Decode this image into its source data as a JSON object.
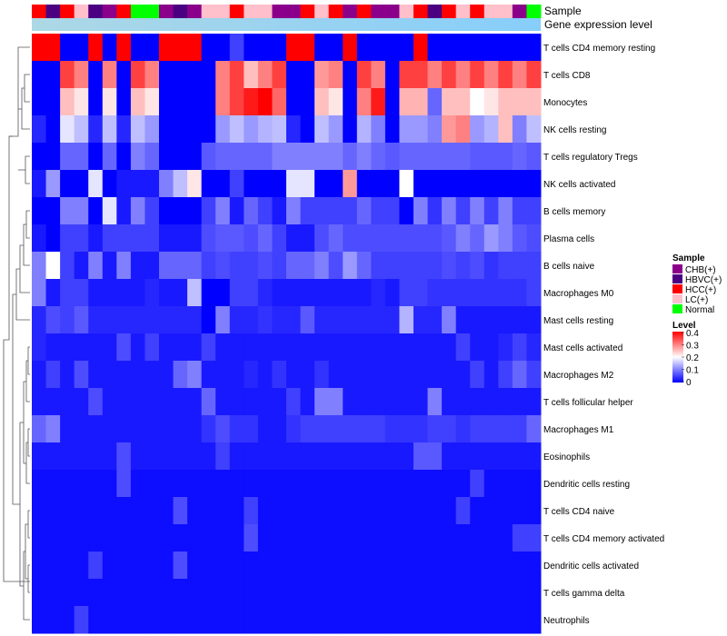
{
  "chart_data": {
    "type": "heatmap",
    "annotation_labels": [
      "Sample",
      "Gene expression level"
    ],
    "rows": [
      "T cells CD4 memory resting",
      "T cells CD8",
      "Monocytes",
      "NK cells resting",
      "T cells regulatory  Tregs",
      "NK cells activated",
      "B cells memory",
      "Plasma cells",
      "B cells naive",
      "Macrophages M0",
      "Mast cells resting",
      "Mast cells activated",
      "Macrophages M2",
      "T cells follicular helper",
      "Macrophages M1",
      "Eosinophils",
      "Dendritic cells resting",
      "T cells CD4 naive",
      "T cells CD4 memory activated",
      "Dendritic cells activated",
      "T cells gamma delta",
      "Neutrophils"
    ],
    "sample_groups": [
      "HCC(+)",
      "HBVC(+)",
      "HCC(+)",
      "LC(+)",
      "HBVC(+)",
      "CHB(+)",
      "HCC(+)",
      "Normal",
      "Normal",
      "CHB(+)",
      "HBVC(+)",
      "CHB(+)",
      "LC(+)",
      "LC(+)",
      "HCC(+)",
      "LC(+)",
      "LC(+)",
      "CHB(+)",
      "CHB(+)",
      "HCC(+)",
      "LC(+)",
      "HCC(+)",
      "CHB(+)",
      "HCC(+)",
      "CHB(+)",
      "CHB(+)",
      "LC(+)",
      "HCC(+)",
      "HBVC(+)",
      "HCC(+)",
      "LC(+)",
      "HCC(+)",
      "LC(+)",
      "LC(+)",
      "CHB(+)",
      "Normal"
    ],
    "values": [
      [
        0.4,
        0.4,
        0.0,
        0.0,
        0.4,
        0.0,
        0.4,
        0.0,
        0.0,
        0.4,
        0.4,
        0.4,
        0.0,
        0.0,
        0.05,
        0.0,
        0.0,
        0.0,
        0.4,
        0.4,
        0.0,
        0.0,
        0.4,
        0.0,
        0.0,
        0.0,
        0.0,
        0.4,
        0.0,
        0.0,
        0.0,
        0.0,
        0.0,
        0.0,
        0.0,
        0.0
      ],
      [
        0.0,
        0.0,
        0.35,
        0.3,
        0.0,
        0.3,
        0.0,
        0.35,
        0.3,
        0.0,
        0.0,
        0.0,
        0.0,
        0.3,
        0.35,
        0.25,
        0.3,
        0.35,
        0.0,
        0.0,
        0.28,
        0.3,
        0.0,
        0.35,
        0.3,
        0.0,
        0.35,
        0.35,
        0.3,
        0.35,
        0.3,
        0.35,
        0.3,
        0.35,
        0.3,
        0.35
      ],
      [
        0.0,
        0.0,
        0.25,
        0.22,
        0.0,
        0.22,
        0.0,
        0.25,
        0.22,
        0.0,
        0.0,
        0.0,
        0.0,
        0.3,
        0.35,
        0.38,
        0.4,
        0.32,
        0.0,
        0.0,
        0.25,
        0.22,
        0.0,
        0.3,
        0.38,
        0.0,
        0.26,
        0.26,
        0.08,
        0.25,
        0.25,
        0.2,
        0.22,
        0.25,
        0.25,
        0.25
      ],
      [
        0.03,
        0.0,
        0.18,
        0.15,
        0.03,
        0.15,
        0.03,
        0.15,
        0.12,
        0.0,
        0.0,
        0.0,
        0.0,
        0.12,
        0.15,
        0.12,
        0.14,
        0.15,
        0.03,
        0.0,
        0.15,
        0.12,
        0.0,
        0.14,
        0.1,
        0.0,
        0.12,
        0.12,
        0.1,
        0.28,
        0.3,
        0.12,
        0.14,
        0.25,
        0.1,
        0.15
      ],
      [
        0.0,
        0.0,
        0.08,
        0.08,
        0.0,
        0.08,
        0.0,
        0.1,
        0.08,
        0.0,
        0.0,
        0.0,
        0.07,
        0.08,
        0.08,
        0.08,
        0.08,
        0.1,
        0.1,
        0.1,
        0.1,
        0.1,
        0.08,
        0.1,
        0.08,
        0.07,
        0.08,
        0.08,
        0.08,
        0.08,
        0.08,
        0.07,
        0.07,
        0.07,
        0.08,
        0.07
      ],
      [
        0.02,
        0.12,
        0.0,
        0.0,
        0.18,
        0.0,
        0.02,
        0.02,
        0.02,
        0.1,
        0.15,
        0.22,
        0.0,
        0.0,
        0.05,
        0.0,
        0.0,
        0.0,
        0.18,
        0.18,
        0.0,
        0.0,
        0.28,
        0.0,
        0.0,
        0.0,
        0.2,
        0.0,
        0.0,
        0.0,
        0.0,
        0.0,
        0.0,
        0.0,
        0.0,
        0.0
      ],
      [
        0.0,
        0.0,
        0.1,
        0.1,
        0.0,
        0.18,
        0.02,
        0.1,
        0.05,
        0.0,
        0.0,
        0.0,
        0.05,
        0.1,
        0.02,
        0.08,
        0.05,
        0.02,
        0.1,
        0.05,
        0.05,
        0.05,
        0.05,
        0.08,
        0.05,
        0.05,
        0.0,
        0.1,
        0.04,
        0.1,
        0.05,
        0.1,
        0.05,
        0.1,
        0.05,
        0.05
      ],
      [
        0.02,
        0.0,
        0.05,
        0.05,
        0.02,
        0.05,
        0.05,
        0.05,
        0.05,
        0.02,
        0.02,
        0.02,
        0.06,
        0.07,
        0.07,
        0.06,
        0.08,
        0.05,
        0.02,
        0.02,
        0.06,
        0.08,
        0.06,
        0.06,
        0.06,
        0.06,
        0.06,
        0.06,
        0.06,
        0.07,
        0.1,
        0.08,
        0.12,
        0.1,
        0.07,
        0.06
      ],
      [
        0.1,
        0.2,
        0.05,
        0.02,
        0.1,
        0.02,
        0.1,
        0.02,
        0.02,
        0.08,
        0.08,
        0.08,
        0.05,
        0.06,
        0.05,
        0.05,
        0.06,
        0.05,
        0.08,
        0.08,
        0.1,
        0.06,
        0.12,
        0.08,
        0.05,
        0.05,
        0.05,
        0.05,
        0.05,
        0.06,
        0.05,
        0.06,
        0.04,
        0.05,
        0.05,
        0.05
      ],
      [
        0.1,
        0.02,
        0.05,
        0.05,
        0.02,
        0.02,
        0.02,
        0.02,
        0.03,
        0.02,
        0.02,
        0.15,
        0.0,
        0.0,
        0.05,
        0.05,
        0.03,
        0.02,
        0.02,
        0.02,
        0.02,
        0.02,
        0.02,
        0.02,
        0.03,
        0.02,
        0.05,
        0.05,
        0.04,
        0.04,
        0.04,
        0.04,
        0.04,
        0.04,
        0.04,
        0.05
      ],
      [
        0.03,
        0.06,
        0.05,
        0.07,
        0.03,
        0.03,
        0.03,
        0.03,
        0.03,
        0.03,
        0.03,
        0.03,
        0.0,
        0.1,
        0.03,
        0.03,
        0.04,
        0.03,
        0.03,
        0.07,
        0.03,
        0.03,
        0.03,
        0.03,
        0.03,
        0.03,
        0.14,
        0.03,
        0.03,
        0.1,
        0.02,
        0.02,
        0.02,
        0.02,
        0.02,
        0.02
      ],
      [
        0.03,
        0.02,
        0.02,
        0.02,
        0.02,
        0.02,
        0.06,
        0.02,
        0.05,
        0.02,
        0.02,
        0.02,
        0.05,
        0.02,
        0.02,
        0.02,
        0.02,
        0.02,
        0.02,
        0.02,
        0.02,
        0.02,
        0.02,
        0.02,
        0.02,
        0.02,
        0.02,
        0.02,
        0.02,
        0.02,
        0.05,
        0.02,
        0.02,
        0.03,
        0.05,
        0.03
      ],
      [
        0.02,
        0.05,
        0.02,
        0.06,
        0.02,
        0.02,
        0.02,
        0.02,
        0.02,
        0.02,
        0.08,
        0.1,
        0.02,
        0.02,
        0.02,
        0.03,
        0.02,
        0.04,
        0.02,
        0.02,
        0.04,
        0.02,
        0.02,
        0.02,
        0.02,
        0.02,
        0.02,
        0.02,
        0.02,
        0.02,
        0.02,
        0.05,
        0.02,
        0.05,
        0.08,
        0.05
      ],
      [
        0.02,
        0.02,
        0.02,
        0.02,
        0.06,
        0.02,
        0.02,
        0.02,
        0.02,
        0.02,
        0.02,
        0.02,
        0.08,
        0.02,
        0.02,
        0.02,
        0.02,
        0.02,
        0.05,
        0.02,
        0.1,
        0.1,
        0.02,
        0.02,
        0.02,
        0.02,
        0.02,
        0.02,
        0.1,
        0.02,
        0.02,
        0.02,
        0.02,
        0.02,
        0.02,
        0.02
      ],
      [
        0.08,
        0.1,
        0.02,
        0.02,
        0.02,
        0.02,
        0.02,
        0.02,
        0.02,
        0.02,
        0.02,
        0.02,
        0.04,
        0.06,
        0.04,
        0.04,
        0.02,
        0.02,
        0.04,
        0.05,
        0.05,
        0.05,
        0.05,
        0.05,
        0.05,
        0.04,
        0.04,
        0.04,
        0.05,
        0.05,
        0.04,
        0.05,
        0.05,
        0.05,
        0.05,
        0.08
      ],
      [
        0.02,
        0.02,
        0.02,
        0.02,
        0.02,
        0.02,
        0.06,
        0.02,
        0.02,
        0.02,
        0.02,
        0.02,
        0.02,
        0.05,
        0.02,
        0.02,
        0.02,
        0.02,
        0.02,
        0.02,
        0.02,
        0.02,
        0.02,
        0.02,
        0.02,
        0.02,
        0.02,
        0.07,
        0.07,
        0.02,
        0.02,
        0.02,
        0.02,
        0.02,
        0.02,
        0.02
      ],
      [
        0.01,
        0.01,
        0.01,
        0.01,
        0.01,
        0.01,
        0.06,
        0.01,
        0.01,
        0.01,
        0.01,
        0.01,
        0.01,
        0.01,
        0.01,
        0.01,
        0.01,
        0.01,
        0.01,
        0.01,
        0.01,
        0.01,
        0.01,
        0.01,
        0.01,
        0.01,
        0.01,
        0.01,
        0.01,
        0.01,
        0.01,
        0.05,
        0.01,
        0.01,
        0.01,
        0.01
      ],
      [
        0.01,
        0.01,
        0.01,
        0.01,
        0.01,
        0.01,
        0.01,
        0.01,
        0.01,
        0.01,
        0.06,
        0.01,
        0.01,
        0.01,
        0.01,
        0.05,
        0.01,
        0.01,
        0.01,
        0.01,
        0.01,
        0.01,
        0.01,
        0.01,
        0.01,
        0.01,
        0.01,
        0.01,
        0.01,
        0.01,
        0.05,
        0.01,
        0.01,
        0.01,
        0.01,
        0.01
      ],
      [
        0.01,
        0.01,
        0.01,
        0.01,
        0.01,
        0.01,
        0.01,
        0.01,
        0.01,
        0.01,
        0.01,
        0.01,
        0.01,
        0.01,
        0.01,
        0.06,
        0.01,
        0.01,
        0.01,
        0.01,
        0.01,
        0.01,
        0.01,
        0.01,
        0.01,
        0.01,
        0.01,
        0.01,
        0.01,
        0.01,
        0.01,
        0.01,
        0.01,
        0.01,
        0.05,
        0.05
      ],
      [
        0.01,
        0.01,
        0.01,
        0.01,
        0.05,
        0.01,
        0.01,
        0.01,
        0.01,
        0.01,
        0.06,
        0.01,
        0.01,
        0.01,
        0.01,
        0.01,
        0.01,
        0.01,
        0.01,
        0.01,
        0.01,
        0.01,
        0.01,
        0.01,
        0.01,
        0.01,
        0.01,
        0.01,
        0.01,
        0.01,
        0.01,
        0.01,
        0.01,
        0.01,
        0.01,
        0.01
      ],
      [
        0.01,
        0.01,
        0.01,
        0.01,
        0.01,
        0.01,
        0.01,
        0.01,
        0.01,
        0.01,
        0.01,
        0.01,
        0.01,
        0.01,
        0.01,
        0.01,
        0.01,
        0.01,
        0.01,
        0.01,
        0.01,
        0.01,
        0.01,
        0.01,
        0.01,
        0.01,
        0.01,
        0.01,
        0.01,
        0.01,
        0.01,
        0.01,
        0.01,
        0.01,
        0.01,
        0.01
      ],
      [
        0.01,
        0.01,
        0.01,
        0.05,
        0.01,
        0.01,
        0.01,
        0.01,
        0.01,
        0.01,
        0.01,
        0.01,
        0.01,
        0.01,
        0.01,
        0.01,
        0.01,
        0.01,
        0.01,
        0.01,
        0.01,
        0.01,
        0.01,
        0.01,
        0.01,
        0.01,
        0.01,
        0.01,
        0.01,
        0.01,
        0.01,
        0.01,
        0.01,
        0.01,
        0.01,
        0.01
      ]
    ],
    "legend": {
      "sample_title": "Sample",
      "sample_entries": [
        {
          "label": "CHB(+)",
          "color": "#8B008B"
        },
        {
          "label": "HBVC(+)",
          "color": "#4B0082"
        },
        {
          "label": "HCC(+)",
          "color": "#FF0000"
        },
        {
          "label": "LC(+)",
          "color": "#FFC0CB"
        },
        {
          "label": "Normal",
          "color": "#00FF00"
        }
      ],
      "level_title": "Level",
      "level_ticks": [
        "0.4",
        "0.3",
        "0.2",
        "0.1",
        "0"
      ],
      "level_range": [
        0,
        0.4
      ],
      "low_color": "#0000FF",
      "mid_color": "#FFFFFF",
      "high_color": "#FF0000"
    },
    "gradient_colors": [
      "#ADD8E6",
      "#87CEFA"
    ]
  }
}
